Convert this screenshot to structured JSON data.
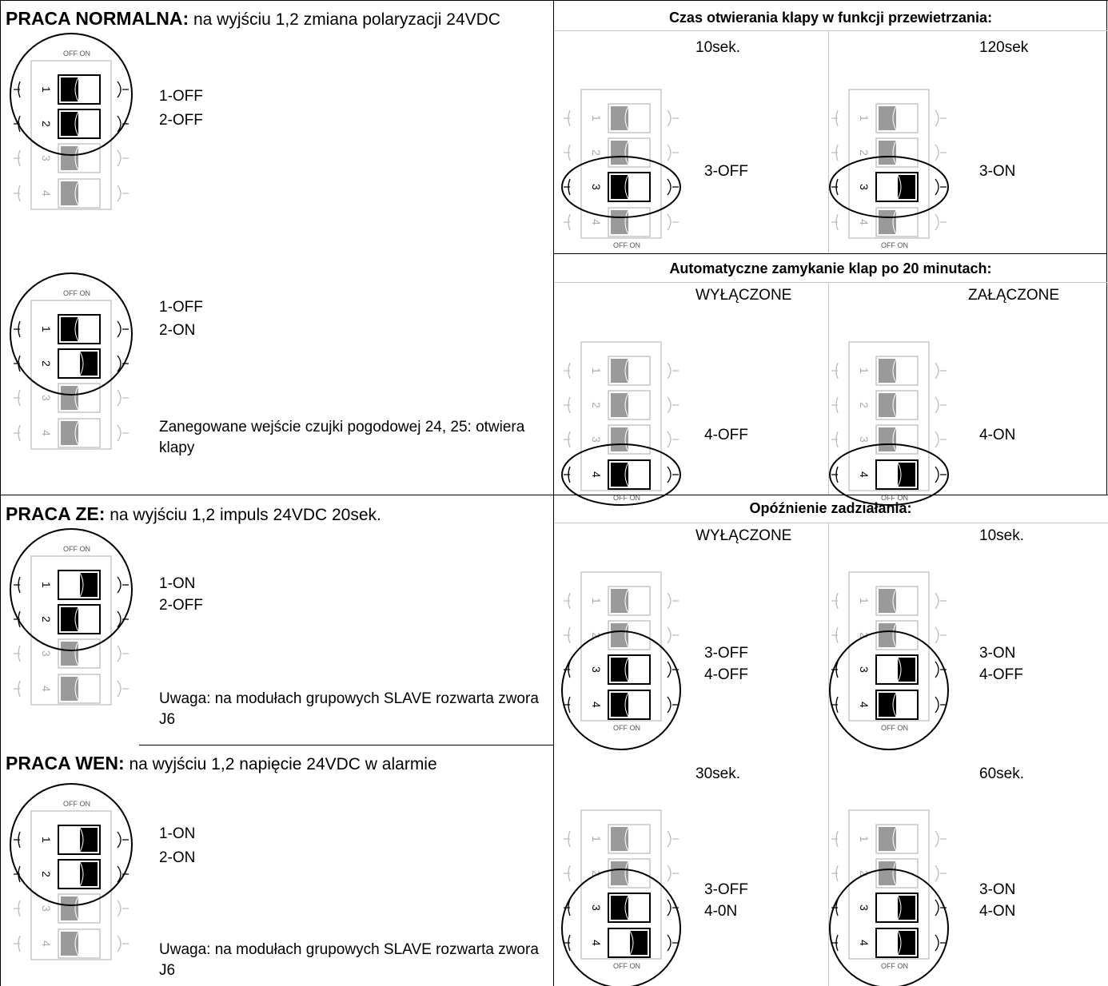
{
  "left": {
    "normalna": {
      "title_bold": "PRACA NORMALNA:",
      "title_rest": " na wyjściu 1,2 zmiana polaryzacji 24VDC",
      "config_a": {
        "line1": "1-OFF",
        "line2": "2-OFF"
      },
      "config_b": {
        "line1": "1-OFF",
        "line2": "2-ON",
        "note": "Zanegowane wejście czujki pogodowej 24, 25: otwiera klapy"
      }
    },
    "ze": {
      "title_bold": "PRACA ZE:",
      "title_rest": " na wyjściu 1,2 impuls 24VDC 20sek.",
      "line1": "1-ON",
      "line2": "2-OFF",
      "note": "Uwaga: na modułach grupowych SLAVE rozwarta zwora J6"
    },
    "wen": {
      "title_bold": "PRACA WEN:",
      "title_rest": " na wyjściu 1,2 napięcie 24VDC w alarmie",
      "line1": "1-ON",
      "line2": "2-ON",
      "note": "Uwaga: na modułach grupowych SLAVE rozwarta zwora J6"
    }
  },
  "right": {
    "czas": {
      "title": "Czas otwierania klapy w funkcji przewietrzania:",
      "opt1": {
        "label": "10sek.",
        "state": "3-OFF"
      },
      "opt2": {
        "label": "120sek",
        "state": "3-ON"
      }
    },
    "auto": {
      "title": "Automatyczne zamykanie klap po 20 minutach:",
      "opt1": {
        "label": "WYŁĄCZONE",
        "state": "4-OFF"
      },
      "opt2": {
        "label": "ZAŁĄCZONE",
        "state": "4-ON"
      }
    },
    "opoznienie": {
      "title": "Opóźnienie zadziałania:",
      "opt1": {
        "label": "WYŁĄCZONE",
        "state1": "3-OFF",
        "state2": "4-OFF"
      },
      "opt2": {
        "label": "10sek.",
        "state1": "3-ON",
        "state2": "4-OFF"
      },
      "opt3": {
        "label": "30sek.",
        "state1": "3-OFF",
        "state2": "4-0N"
      },
      "opt4": {
        "label": "60sek.",
        "state1": "3-ON",
        "state2": "4-ON"
      }
    }
  },
  "dip_switch": {
    "off_label": "OFF",
    "on_label": "ON"
  },
  "colors": {
    "active": "#000000",
    "inactive": "#9a9a9a",
    "border": "#000000",
    "grid_thin": "#c8c8c8"
  }
}
